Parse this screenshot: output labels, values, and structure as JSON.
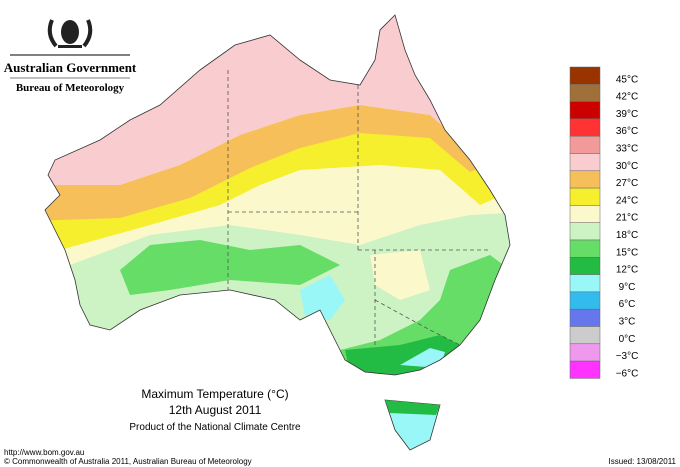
{
  "header": {
    "title": "Australian Government",
    "subtitle": "Bureau of Meteorology"
  },
  "legend": {
    "items": [
      {
        "label": "45°C",
        "color": "#993300"
      },
      {
        "label": "42°C",
        "color": "#a0703a"
      },
      {
        "label": "39°C",
        "color": "#cc0000"
      },
      {
        "label": "36°C",
        "color": "#ff3333"
      },
      {
        "label": "33°C",
        "color": "#f29a9a"
      },
      {
        "label": "30°C",
        "color": "#f9cdd0"
      },
      {
        "label": "27°C",
        "color": "#f7bf5a"
      },
      {
        "label": "24°C",
        "color": "#f5ef2e"
      },
      {
        "label": "21°C",
        "color": "#fbf9cc"
      },
      {
        "label": "18°C",
        "color": "#cdf2c4"
      },
      {
        "label": "15°C",
        "color": "#66dd66"
      },
      {
        "label": "12°C",
        "color": "#22bb44"
      },
      {
        "label": "9°C",
        "color": "#99f7f7"
      },
      {
        "label": "6°C",
        "color": "#33bbee"
      },
      {
        "label": "3°C",
        "color": "#6677ee"
      },
      {
        "label": "0°C",
        "color": "#cccccc"
      },
      {
        "label": "−3°C",
        "color": "#ee99ee"
      },
      {
        "label": "−6°C",
        "color": "#ff33ff"
      }
    ]
  },
  "caption": {
    "title": "Maximum Temperature (°C)",
    "date": "12th August 2011",
    "product": "Product of the National Climate Centre"
  },
  "footer": {
    "url": "http://www.bom.gov.au",
    "copyright": "© Commonwealth of Australia 2011, Australian Bureau of Meteorology",
    "issued": "Issued: 13/08/2011"
  }
}
